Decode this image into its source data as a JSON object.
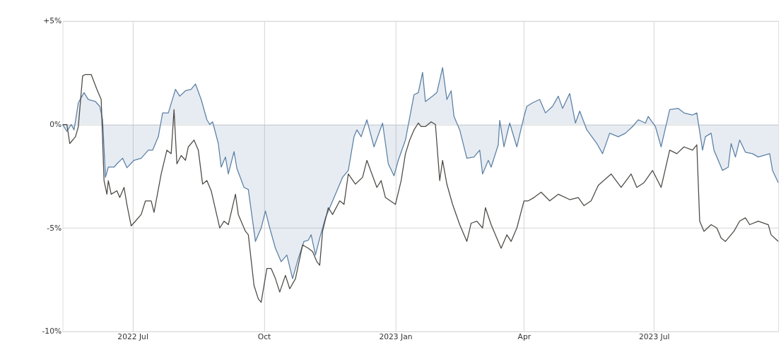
{
  "chart_data": {
    "type": "line",
    "xlim": [
      "2022-05-13",
      "2023-09-26"
    ],
    "xticks": [
      {
        "value": "2022-07-01",
        "label": "2022 Jul"
      },
      {
        "value": "2022-10-01",
        "label": "Oct"
      },
      {
        "value": "2023-01-01",
        "label": "2023 Jan"
      },
      {
        "value": "2023-04-01",
        "label": "Apr"
      },
      {
        "value": "2023-07-01",
        "label": "2023 Jul"
      }
    ],
    "ylim": [
      -10,
      5
    ],
    "yticks": [
      {
        "value": 5,
        "label": "+5%"
      },
      {
        "value": 0,
        "label": "0%"
      },
      {
        "value": -5,
        "label": "-5%"
      },
      {
        "value": -10,
        "label": "-10%"
      }
    ],
    "grid": true,
    "series": [
      {
        "type": "area",
        "color": "#5b80a5",
        "x": [
          "2022-05-13",
          "2022-05-16",
          "2022-05-19",
          "2022-05-21",
          "2022-05-24",
          "2022-05-28",
          "2022-05-31",
          "2022-06-05",
          "2022-06-08",
          "2022-06-10",
          "2022-06-12",
          "2022-06-14",
          "2022-06-18",
          "2022-06-20",
          "2022-06-24",
          "2022-06-27",
          "2022-07-02",
          "2022-07-07",
          "2022-07-12",
          "2022-07-15",
          "2022-07-19",
          "2022-07-22",
          "2022-07-26",
          "2022-07-31",
          "2022-08-03",
          "2022-08-07",
          "2022-08-11",
          "2022-08-14",
          "2022-08-18",
          "2022-08-22",
          "2022-08-24",
          "2022-08-26",
          "2022-08-30",
          "2022-09-01",
          "2022-09-04",
          "2022-09-06",
          "2022-09-10",
          "2022-09-12",
          "2022-09-17",
          "2022-09-20",
          "2022-09-25",
          "2022-09-29",
          "2022-10-02",
          "2022-10-05",
          "2022-10-09",
          "2022-10-13",
          "2022-10-17",
          "2022-10-21",
          "2022-10-25",
          "2022-10-29",
          "2022-11-01",
          "2022-11-03",
          "2022-11-06",
          "2022-11-09",
          "2022-11-13",
          "2022-11-16",
          "2022-11-20",
          "2022-11-25",
          "2022-11-29",
          "2022-12-03",
          "2022-12-05",
          "2022-12-08",
          "2022-12-12",
          "2022-12-17",
          "2022-12-23",
          "2022-12-27",
          "2022-12-31",
          "2023-01-03",
          "2023-01-08",
          "2023-01-14",
          "2023-01-17",
          "2023-01-20",
          "2023-01-22",
          "2023-01-27",
          "2023-01-30",
          "2023-02-03",
          "2023-02-06",
          "2023-02-09",
          "2023-02-11",
          "2023-02-15",
          "2023-02-20",
          "2023-02-25",
          "2023-03-01",
          "2023-03-03",
          "2023-03-07",
          "2023-03-09",
          "2023-03-14",
          "2023-03-15",
          "2023-03-18",
          "2023-03-22",
          "2023-03-27",
          "2023-04-01",
          "2023-04-03",
          "2023-04-07",
          "2023-04-12",
          "2023-04-16",
          "2023-04-21",
          "2023-04-25",
          "2023-04-28",
          "2023-05-03",
          "2023-05-07",
          "2023-05-10",
          "2023-05-15",
          "2023-05-22",
          "2023-05-26",
          "2023-05-31",
          "2023-06-06",
          "2023-06-11",
          "2023-06-16",
          "2023-06-20",
          "2023-06-25",
          "2023-06-27",
          "2023-07-02",
          "2023-07-06",
          "2023-07-12",
          "2023-07-18",
          "2023-07-22",
          "2023-07-28",
          "2023-07-31",
          "2023-08-04",
          "2023-08-06",
          "2023-08-10",
          "2023-08-12",
          "2023-08-18",
          "2023-08-22",
          "2023-08-24",
          "2023-08-27",
          "2023-08-30",
          "2023-09-03",
          "2023-09-08",
          "2023-09-12",
          "2023-09-20",
          "2023-09-22",
          "2023-09-26"
        ],
        "values": [
          0,
          -0.33,
          0,
          -0.26,
          1.05,
          1.54,
          1.21,
          1.11,
          0.88,
          0.23,
          -2.55,
          -2.06,
          -2.06,
          -1.9,
          -1.63,
          -2.09,
          -1.73,
          -1.63,
          -1.24,
          -1.24,
          -0.59,
          0.56,
          0.56,
          1.7,
          1.37,
          1.63,
          1.7,
          1.96,
          1.21,
          0.23,
          0,
          0.13,
          -0.92,
          -2.06,
          -1.57,
          -2.39,
          -1.31,
          -2.12,
          -3.04,
          -3.14,
          -5.65,
          -5.0,
          -4.18,
          -5.0,
          -5.98,
          -6.63,
          -6.31,
          -7.45,
          -6.47,
          -5.65,
          -5.59,
          -5.33,
          -6.31,
          -5.49,
          -4.51,
          -4.02,
          -3.37,
          -2.55,
          -2.22,
          -0.59,
          -0.26,
          -0.59,
          0.23,
          -1.08,
          0.07,
          -1.9,
          -2.48,
          -1.73,
          -0.75,
          1.44,
          1.54,
          2.52,
          1.11,
          1.37,
          1.54,
          2.75,
          1.21,
          1.63,
          0.39,
          -0.26,
          -1.63,
          -1.57,
          -1.24,
          -2.39,
          -1.73,
          -2.06,
          -0.98,
          0.2,
          -1.08,
          0.07,
          -1.08,
          0.39,
          0.88,
          1.05,
          1.21,
          0.56,
          0.88,
          1.37,
          0.78,
          1.5,
          0.07,
          0.65,
          -0.26,
          -0.92,
          -1.41,
          -0.42,
          -0.59,
          -0.42,
          -0.1,
          0.23,
          0.07,
          0.39,
          -0.1,
          -1.08,
          0.72,
          0.78,
          0.56,
          0.46,
          0.56,
          -1.24,
          -0.59,
          -0.42,
          -1.24,
          -2.22,
          -2.06,
          -0.92,
          -1.57,
          -0.75,
          -1.34,
          -1.41,
          -1.57,
          -1.41,
          -2.22,
          -2.81
        ]
      },
      {
        "color": "#4d4a45",
        "x": [
          "2022-05-13",
          "2022-05-16",
          "2022-05-18",
          "2022-05-22",
          "2022-05-24",
          "2022-05-27",
          "2022-05-29",
          "2022-06-02",
          "2022-06-06",
          "2022-06-09",
          "2022-06-11",
          "2022-06-13",
          "2022-06-14",
          "2022-06-16",
          "2022-06-20",
          "2022-06-22",
          "2022-06-25",
          "2022-06-27",
          "2022-06-30",
          "2022-07-03",
          "2022-07-07",
          "2022-07-10",
          "2022-07-14",
          "2022-07-16",
          "2022-07-21",
          "2022-07-25",
          "2022-07-28",
          "2022-07-30",
          "2022-08-01",
          "2022-08-04",
          "2022-08-07",
          "2022-08-09",
          "2022-08-13",
          "2022-08-16",
          "2022-08-19",
          "2022-08-22",
          "2022-08-25",
          "2022-08-31",
          "2022-09-03",
          "2022-09-06",
          "2022-09-11",
          "2022-09-13",
          "2022-09-18",
          "2022-09-20",
          "2022-09-24",
          "2022-09-27",
          "2022-09-29",
          "2022-10-03",
          "2022-10-06",
          "2022-10-09",
          "2022-10-12",
          "2022-10-16",
          "2022-10-19",
          "2022-10-23",
          "2022-10-28",
          "2022-11-01",
          "2022-11-04",
          "2022-11-07",
          "2022-11-09",
          "2022-11-11",
          "2022-11-15",
          "2022-11-18",
          "2022-11-23",
          "2022-11-26",
          "2022-11-29",
          "2022-12-04",
          "2022-12-09",
          "2022-12-12",
          "2022-12-19",
          "2022-12-22",
          "2022-12-25",
          "2023-01-01",
          "2023-01-05",
          "2023-01-08",
          "2023-01-11",
          "2023-01-14",
          "2023-01-17",
          "2023-01-19",
          "2023-01-22",
          "2023-01-26",
          "2023-01-29",
          "2023-02-01",
          "2023-02-03",
          "2023-02-06",
          "2023-02-10",
          "2023-02-15",
          "2023-02-20",
          "2023-02-23",
          "2023-02-27",
          "2023-03-03",
          "2023-03-05",
          "2023-03-09",
          "2023-03-12",
          "2023-03-16",
          "2023-03-20",
          "2023-03-23",
          "2023-03-27",
          "2023-04-01",
          "2023-04-04",
          "2023-04-08",
          "2023-04-13",
          "2023-04-19",
          "2023-04-25",
          "2023-05-03",
          "2023-05-09",
          "2023-05-13",
          "2023-05-18",
          "2023-05-23",
          "2023-06-01",
          "2023-06-08",
          "2023-06-15",
          "2023-06-19",
          "2023-06-24",
          "2023-06-30",
          "2023-07-06",
          "2023-07-12",
          "2023-07-17",
          "2023-07-22",
          "2023-07-28",
          "2023-07-31",
          "2023-08-02",
          "2023-08-05",
          "2023-08-10",
          "2023-08-14",
          "2023-08-17",
          "2023-08-20",
          "2023-08-26",
          "2023-08-30",
          "2023-09-03",
          "2023-09-06",
          "2023-09-12",
          "2023-09-19",
          "2023-09-21",
          "2023-09-26"
        ],
        "values": [
          0,
          0,
          -0.92,
          -0.59,
          -0.1,
          2.35,
          2.42,
          2.42,
          1.7,
          1.21,
          -2.71,
          -3.37,
          -2.71,
          -3.37,
          -3.2,
          -3.53,
          -3.04,
          -3.86,
          -4.9,
          -4.67,
          -4.35,
          -3.69,
          -3.69,
          -4.25,
          -2.39,
          -1.24,
          -1.41,
          0.72,
          -1.9,
          -1.5,
          -1.73,
          -1.08,
          -0.75,
          -1.24,
          -2.88,
          -2.71,
          -3.2,
          -5.0,
          -4.67,
          -4.84,
          -3.37,
          -4.35,
          -5.16,
          -5.33,
          -7.78,
          -8.43,
          -8.59,
          -6.96,
          -6.96,
          -7.45,
          -8.1,
          -7.29,
          -7.94,
          -7.45,
          -5.82,
          -5.98,
          -6.14,
          -6.63,
          -6.8,
          -5.16,
          -4.02,
          -4.35,
          -3.69,
          -3.86,
          -2.39,
          -2.88,
          -2.55,
          -1.73,
          -3.04,
          -2.71,
          -3.53,
          -3.86,
          -2.71,
          -1.41,
          -0.75,
          -0.26,
          0.07,
          -0.1,
          -0.1,
          0.13,
          0,
          -2.71,
          -1.73,
          -2.88,
          -3.86,
          -4.84,
          -5.65,
          -4.77,
          -4.67,
          -5.0,
          -4.02,
          -4.84,
          -5.33,
          -5.98,
          -5.33,
          -5.65,
          -5.0,
          -3.69,
          -3.69,
          -3.53,
          -3.27,
          -3.69,
          -3.37,
          -3.63,
          -3.53,
          -3.92,
          -3.69,
          -2.94,
          -2.39,
          -3.04,
          -2.39,
          -3.04,
          -2.81,
          -2.22,
          -3.04,
          -1.24,
          -1.41,
          -1.08,
          -1.24,
          -0.98,
          -4.67,
          -5.16,
          -4.84,
          -5.0,
          -5.49,
          -5.65,
          -5.16,
          -4.67,
          -4.51,
          -4.84,
          -4.67,
          -4.84,
          -5.33,
          -5.65
        ]
      }
    ]
  }
}
